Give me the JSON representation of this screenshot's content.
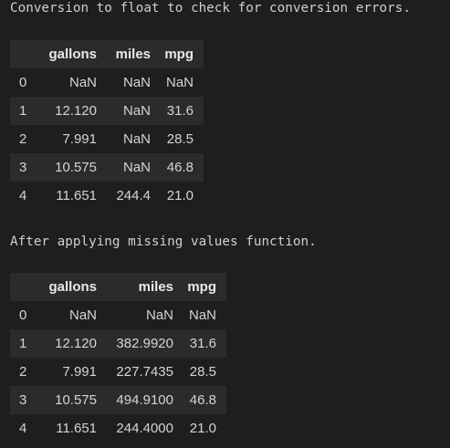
{
  "output": {
    "line1": "Conversion to float to check for conversion errors.",
    "line2": "After applying missing values function."
  },
  "table1": {
    "columns": [
      "",
      "gallons",
      "miles",
      "mpg"
    ],
    "rows": [
      [
        "0",
        "NaN",
        "NaN",
        "NaN"
      ],
      [
        "1",
        "12.120",
        "NaN",
        "31.6"
      ],
      [
        "2",
        "7.991",
        "NaN",
        "28.5"
      ],
      [
        "3",
        "10.575",
        "NaN",
        "46.8"
      ],
      [
        "4",
        "11.651",
        "244.4",
        "21.0"
      ]
    ]
  },
  "table2": {
    "columns": [
      "",
      "gallons",
      "miles",
      "mpg"
    ],
    "rows": [
      [
        "0",
        "NaN",
        "NaN",
        "NaN"
      ],
      [
        "1",
        "12.120",
        "382.9920",
        "31.6"
      ],
      [
        "2",
        "7.991",
        "227.7435",
        "28.5"
      ],
      [
        "3",
        "10.575",
        "494.9100",
        "46.8"
      ],
      [
        "4",
        "11.651",
        "244.4000",
        "21.0"
      ]
    ]
  }
}
